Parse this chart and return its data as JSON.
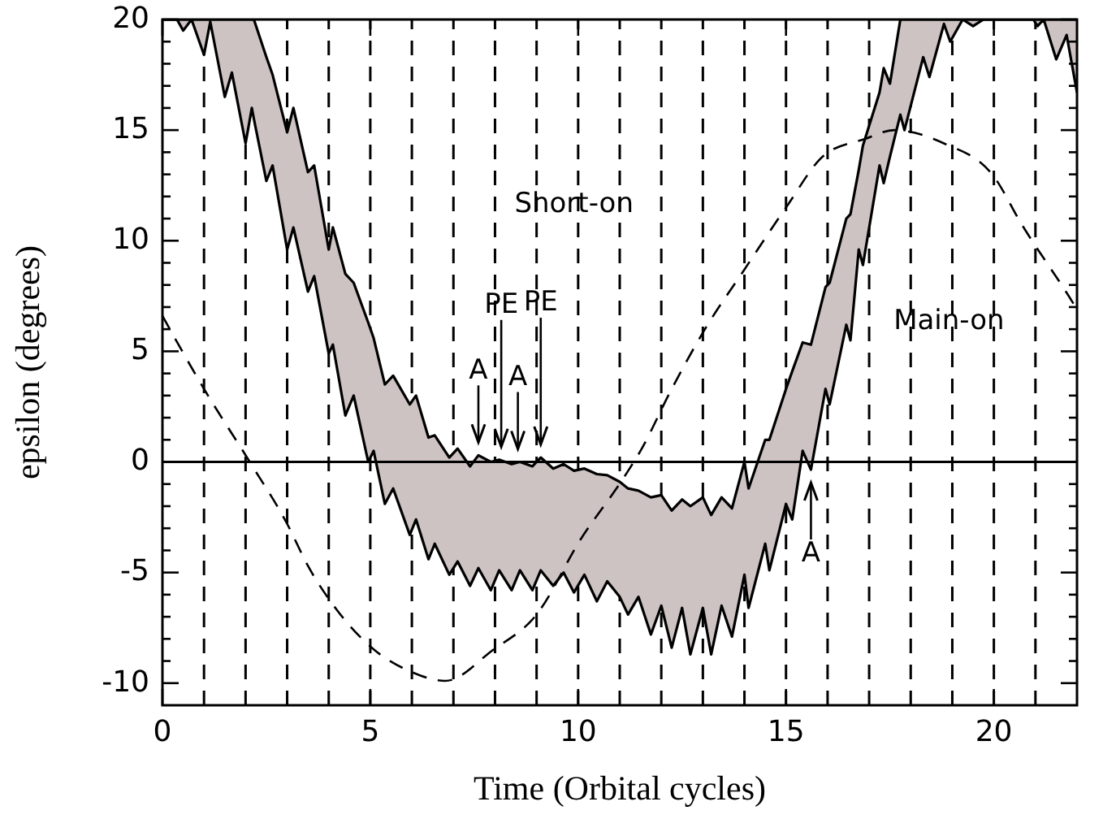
{
  "chart_data": {
    "type": "line",
    "xlabel": "Time (Orbital cycles)",
    "ylabel": "epsilon (degrees)",
    "xlim": [
      0,
      22
    ],
    "ylim": [
      -11,
      20
    ],
    "xticks": [
      0,
      5,
      10,
      15,
      20
    ],
    "yticks": [
      -10,
      {
        "value": -9,
        "label": null
      },
      {
        "value": -8,
        "label": null
      },
      {
        "value": -7,
        "label": null
      },
      {
        "value": -6,
        "label": null
      },
      -5,
      {
        "value": -4,
        "label": null
      },
      {
        "value": -3,
        "label": null
      },
      {
        "value": -2,
        "label": null
      },
      {
        "value": -1,
        "label": null
      },
      0,
      {
        "value": 1,
        "label": null
      },
      {
        "value": 2,
        "label": null
      },
      {
        "value": 3,
        "label": null
      },
      {
        "value": 4,
        "label": null
      },
      5,
      {
        "value": 6,
        "label": null
      },
      {
        "value": 7,
        "label": null
      },
      {
        "value": 8,
        "label": null
      },
      {
        "value": 9,
        "label": null
      },
      10,
      {
        "value": 11,
        "label": null
      },
      {
        "value": 12,
        "label": null
      },
      {
        "value": 13,
        "label": null
      },
      {
        "value": 14,
        "label": null
      },
      15,
      {
        "value": 16,
        "label": null
      },
      {
        "value": 17,
        "label": null
      },
      {
        "value": 18,
        "label": null
      },
      {
        "value": 19,
        "label": null
      },
      20
    ],
    "series": [
      {
        "color": "#000000",
        "x": [
          0,
          0.35,
          0.5,
          0.7,
          1.0,
          1.15,
          1.5,
          1.67,
          2.0,
          2.15,
          2.2,
          2.5,
          2.65,
          3.0,
          3.15,
          3.5,
          3.65,
          4.0,
          4.1,
          4.4,
          4.6,
          4.95,
          5.08,
          5.35,
          5.55,
          5.95,
          6.1,
          6.4,
          6.55,
          6.9,
          7.1,
          7.4,
          7.6,
          7.9,
          8.1,
          8.4,
          8.6,
          8.9,
          9.1,
          9.4,
          9.65,
          9.9,
          10.15,
          10.45,
          10.7,
          11.0,
          11.2,
          11.45,
          11.75,
          12.0,
          12.25,
          12.5,
          12.7,
          13.0,
          13.2,
          13.45,
          13.7,
          14.0,
          14.1,
          14.5,
          14.6,
          15.0,
          15.15,
          15.4,
          15.6,
          15.95,
          16.05,
          16.45,
          16.55,
          16.75,
          16.85,
          17.25,
          17.35,
          17.5,
          17.75,
          17.85,
          18.3,
          18.45,
          18.8,
          18.95,
          19.25,
          19.5,
          19.75,
          20.95,
          21.05,
          21.2,
          21.5,
          21.75,
          22
        ],
        "values": [
          20,
          20,
          20,
          20,
          20,
          20,
          20,
          20,
          20,
          20,
          20,
          18.3,
          17.5,
          14.9,
          16.0,
          13.1,
          13.4,
          9.6,
          10.6,
          8.5,
          8.1,
          6.3,
          5.6,
          3.5,
          3.9,
          2.6,
          3.0,
          1.1,
          1.2,
          0.2,
          0.6,
          -0.2,
          0.3,
          0.0,
          0.1,
          -0.1,
          0.0,
          -0.2,
          0.2,
          -0.3,
          -0.1,
          -0.4,
          -0.3,
          -0.55,
          -0.6,
          -0.9,
          -1.2,
          -1.3,
          -1.6,
          -1.5,
          -2.2,
          -1.7,
          -2.0,
          -1.6,
          -2.4,
          -1.6,
          -2.1,
          0,
          -1.2,
          1.0,
          1.0,
          3.3,
          4.1,
          5.4,
          5.3,
          7.9,
          8.1,
          11.0,
          11.2,
          13.2,
          14.3,
          16.7,
          17.8,
          17.1,
          20,
          20,
          20,
          20,
          20,
          20,
          20,
          20,
          20,
          20,
          20,
          20,
          20,
          20,
          20
        ],
        "lower": [
          20,
          20,
          19.5,
          20,
          18.4,
          19.9,
          16.5,
          17.6,
          14.4,
          16.0,
          15.5,
          12.7,
          13.4,
          9.6,
          10.6,
          7.7,
          8.4,
          4.9,
          5.3,
          2.1,
          3.0,
          0,
          0.5,
          -1.9,
          -1.2,
          -3.3,
          -2.6,
          -4.4,
          -3.7,
          -5.1,
          -4.5,
          -5.6,
          -4.8,
          -5.8,
          -4.9,
          -5.8,
          -4.9,
          -5.8,
          -4.9,
          -5.6,
          -5.0,
          -5.9,
          -5.1,
          -6.3,
          -5.4,
          -6.1,
          -6.9,
          -6.1,
          -7.8,
          -6.5,
          -8.4,
          -6.6,
          -8.7,
          -6.6,
          -8.7,
          -6.5,
          -7.9,
          -5.1,
          -6.6,
          -3.7,
          -4.9,
          -1.9,
          -2.6,
          0.5,
          -0.35,
          3.3,
          2.6,
          6.2,
          5.5,
          9.6,
          8.9,
          13.4,
          12.6,
          13.8,
          15.7,
          15.0,
          18.3,
          17.4,
          19.8,
          19.0,
          20,
          19.7,
          20,
          20,
          19.7,
          20,
          18.2,
          19.3,
          16.7
        ],
        "upper": [
          20,
          20,
          20,
          20,
          20,
          20,
          20,
          20,
          20,
          20,
          20,
          18.3,
          17.5,
          14.9,
          16.0,
          13.1,
          13.4,
          9.6,
          10.6,
          8.5,
          8.1,
          6.3,
          5.6,
          3.5,
          3.9,
          2.6,
          3.0,
          1.1,
          1.2,
          0.2,
          0.6,
          -0.2,
          0.3,
          0.0,
          0.1,
          -0.1,
          0.0,
          -0.2,
          0.2,
          -0.3,
          -0.1,
          -0.4,
          -0.3,
          -0.55,
          -0.6,
          -0.9,
          -1.2,
          -1.3,
          -1.6,
          -1.5,
          -2.2,
          -1.7,
          -2.0,
          -1.6,
          -2.4,
          -1.6,
          -2.1,
          0,
          -1.2,
          1.0,
          1.0,
          3.3,
          4.1,
          5.4,
          5.3,
          7.9,
          8.1,
          11.0,
          11.2,
          13.2,
          14.3,
          16.7,
          17.8,
          17.1,
          20,
          20,
          20,
          20,
          20,
          20,
          20,
          20,
          20,
          20,
          20,
          20,
          20,
          20,
          20
        ]
      },
      {
        "color": "#000000",
        "x": [
          0,
          0.35,
          0.5,
          0.7,
          1.0,
          1.15,
          1.5,
          1.67,
          2.0,
          2.15,
          2.2,
          2.5,
          2.65,
          3.0,
          3.15,
          3.5,
          3.65,
          4.0,
          4.1,
          4.4,
          4.6,
          4.95,
          5.08,
          5.35,
          5.55,
          5.95,
          6.1,
          6.4,
          6.55,
          6.9,
          7.1,
          7.4,
          7.6,
          7.9,
          8.1,
          8.4,
          8.6,
          8.9,
          9.1,
          9.4,
          9.65,
          9.9,
          10.15,
          10.45,
          10.7,
          11.0,
          11.2,
          11.45,
          11.75,
          12.0,
          12.25,
          12.5,
          12.7,
          13.0,
          13.2,
          13.45,
          13.7,
          14.0,
          14.1,
          14.5,
          14.6,
          15.0,
          15.15,
          15.4,
          15.6,
          15.95,
          16.05,
          16.45,
          16.55,
          16.75,
          16.85,
          17.25,
          17.35,
          17.5,
          17.75,
          17.85,
          18.3,
          18.45,
          18.8,
          18.95,
          19.25,
          19.5,
          19.75,
          20.95,
          21.05,
          21.2,
          21.5,
          21.75,
          22
        ],
        "values": [
          20,
          20,
          19.5,
          20,
          18.4,
          19.9,
          16.5,
          17.6,
          14.4,
          16.0,
          15.5,
          12.7,
          13.4,
          9.6,
          10.6,
          7.7,
          8.4,
          4.9,
          5.3,
          2.1,
          3.0,
          0,
          0.5,
          -1.9,
          -1.2,
          -3.3,
          -2.6,
          -4.4,
          -3.7,
          -5.1,
          -4.5,
          -5.6,
          -4.8,
          -5.8,
          -4.9,
          -5.8,
          -4.9,
          -5.8,
          -4.9,
          -5.6,
          -5.0,
          -5.9,
          -5.1,
          -6.3,
          -5.4,
          -6.1,
          -6.9,
          -6.1,
          -7.8,
          -6.5,
          -8.4,
          -6.6,
          -8.7,
          -6.6,
          -8.7,
          -6.5,
          -7.9,
          -5.1,
          -6.6,
          -3.7,
          -4.9,
          -1.9,
          -2.6,
          0.5,
          -0.35,
          3.3,
          2.6,
          6.2,
          5.5,
          9.6,
          8.9,
          13.4,
          12.6,
          13.8,
          15.7,
          15.0,
          18.3,
          17.4,
          19.8,
          19.0,
          20,
          19.7,
          20,
          20,
          19.7,
          20,
          18.2,
          19.3,
          16.7
        ]
      },
      {
        "line_style": "dashed",
        "color": "#000000",
        "x": [
          0,
          1.0,
          2.1,
          3.0,
          3.5,
          4.2,
          5.1,
          6.0,
          6.8,
          7.95,
          9.0,
          10.06,
          11.1,
          11.5,
          12.25,
          13.05,
          14.0,
          15.0,
          15.94,
          16.9,
          17.6,
          18.8,
          20.0,
          20.65,
          21.8,
          22
        ],
        "values": [
          6.6,
          3.3,
          0,
          -2.8,
          -4.7,
          -6.7,
          -8.5,
          -9.5,
          -9.9,
          -8.5,
          -6.9,
          -3.5,
          -0.7,
          0.5,
          3.3,
          6.0,
          8.7,
          11.5,
          13.9,
          14.6,
          15.0,
          14.4,
          12.9,
          10.8,
          7.5,
          6.9
        ]
      }
    ],
    "ref_lines": [
      {
        "axis": "y",
        "value": 0,
        "line_style": "solid",
        "color": "#000000"
      },
      {
        "axis": "x",
        "value": 1,
        "line_style": "dashed",
        "color": "#000000"
      },
      {
        "axis": "x",
        "value": 2,
        "line_style": "dashed",
        "color": "#000000"
      },
      {
        "axis": "x",
        "value": 3,
        "line_style": "dashed",
        "color": "#000000"
      },
      {
        "axis": "x",
        "value": 4,
        "line_style": "dashed",
        "color": "#000000"
      },
      {
        "axis": "x",
        "value": 5,
        "line_style": "dashed",
        "color": "#000000"
      },
      {
        "axis": "x",
        "value": 6,
        "line_style": "dashed",
        "color": "#000000"
      },
      {
        "axis": "x",
        "value": 7,
        "line_style": "dashed",
        "color": "#000000"
      },
      {
        "axis": "x",
        "value": 8,
        "line_style": "dashed",
        "color": "#000000"
      },
      {
        "axis": "x",
        "value": 9,
        "line_style": "dashed",
        "color": "#000000"
      },
      {
        "axis": "x",
        "value": 10,
        "line_style": "dashed",
        "color": "#000000"
      },
      {
        "axis": "x",
        "value": 11,
        "line_style": "dashed",
        "color": "#000000"
      },
      {
        "axis": "x",
        "value": 12,
        "line_style": "dashed",
        "color": "#000000"
      },
      {
        "axis": "x",
        "value": 13,
        "line_style": "dashed",
        "color": "#000000"
      },
      {
        "axis": "x",
        "value": 14,
        "line_style": "dashed",
        "color": "#000000"
      },
      {
        "axis": "x",
        "value": 15,
        "line_style": "dashed",
        "color": "#000000"
      },
      {
        "axis": "x",
        "value": 16,
        "line_style": "dashed",
        "color": "#000000"
      },
      {
        "axis": "x",
        "value": 17,
        "line_style": "dashed",
        "color": "#000000"
      },
      {
        "axis": "x",
        "value": 18,
        "line_style": "dashed",
        "color": "#000000"
      },
      {
        "axis": "x",
        "value": 19,
        "line_style": "dashed",
        "color": "#000000"
      },
      {
        "axis": "x",
        "value": 20,
        "line_style": "dashed",
        "color": "#000000"
      },
      {
        "axis": "x",
        "value": 21,
        "line_style": "dashed",
        "color": "#000000"
      }
    ],
    "annotations": [
      "Short-on",
      "Main-on",
      {
        "text": "A",
        "x": 7.6,
        "y": 0.3
      },
      {
        "text": "PE",
        "x": 8.15,
        "y": 0.1
      },
      {
        "text": "A",
        "x": 8.55,
        "y": 0.0
      },
      {
        "text": "PE",
        "x": 9.1,
        "y": 0.2
      },
      {
        "text": "A",
        "x": 15.6,
        "y": -0.35
      }
    ]
  }
}
